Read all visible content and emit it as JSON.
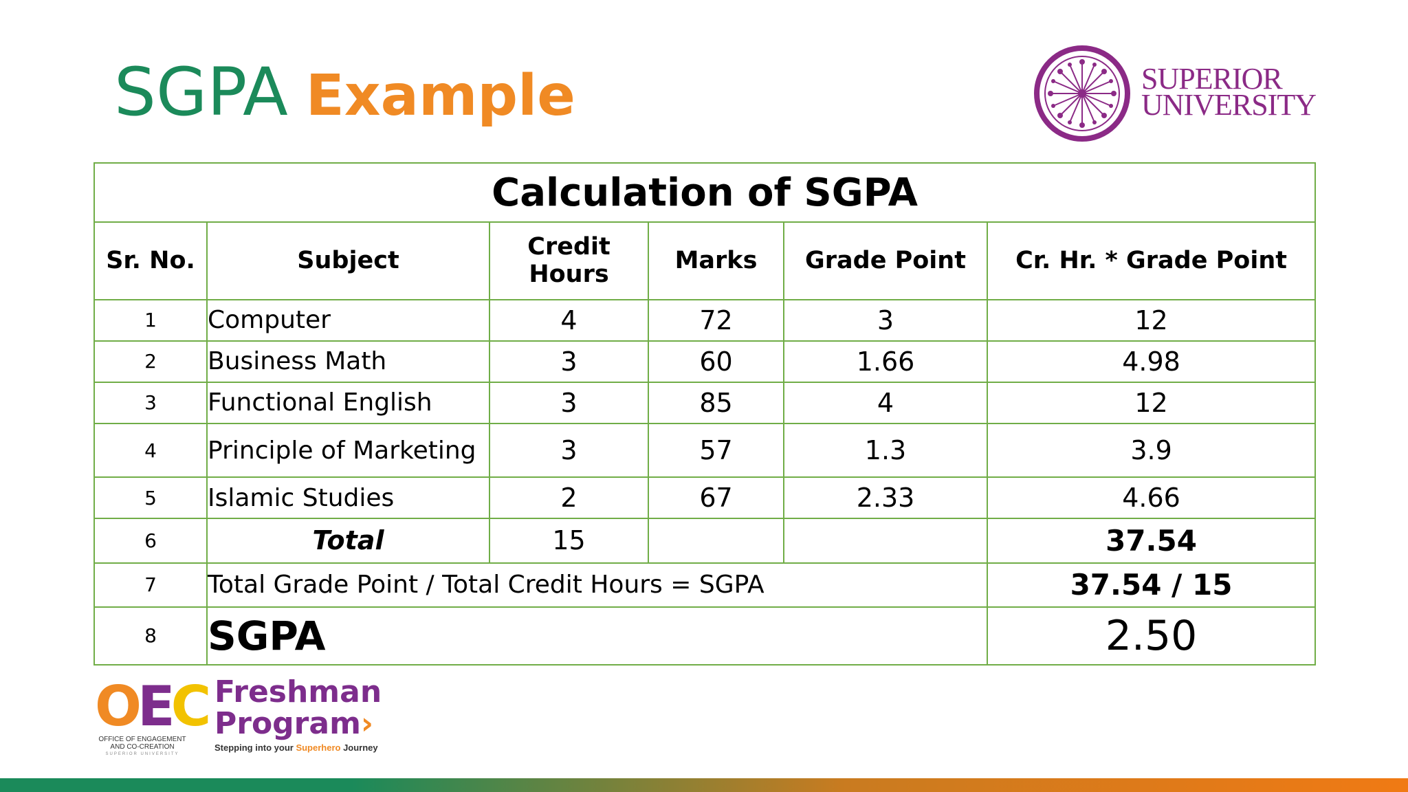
{
  "title": {
    "part1": "SGPA",
    "part2": "Example"
  },
  "logo": {
    "line1": "SUPERIOR",
    "line2": "UNIVERSITY"
  },
  "table": {
    "caption": "Calculation of SGPA",
    "headers": [
      "Sr. No.",
      "Subject",
      "Credit Hours",
      "Marks",
      "Grade Point",
      "Cr. Hr. * Grade Point"
    ],
    "rows": [
      {
        "sr": "1",
        "subject": "Computer",
        "credit": "4",
        "marks": "72",
        "gp": "3",
        "product": "12"
      },
      {
        "sr": "2",
        "subject": "Business Math",
        "credit": "3",
        "marks": "60",
        "gp": "1.66",
        "product": "4.98"
      },
      {
        "sr": "3",
        "subject": "Functional English",
        "credit": "3",
        "marks": "85",
        "gp": "4",
        "product": "12"
      },
      {
        "sr": "4",
        "subject": "Principle of Marketing",
        "credit": "3",
        "marks": "57",
        "gp": "1.3",
        "product": "3.9"
      },
      {
        "sr": "5",
        "subject": "Islamic Studies",
        "credit": "2",
        "marks": "67",
        "gp": "2.33",
        "product": "4.66"
      }
    ],
    "total_row": {
      "sr": "6",
      "label": "Total",
      "credit": "15",
      "product": "37.54"
    },
    "formula_row": {
      "sr": "7",
      "label": "Total Grade Point / Total Credit Hours = SGPA",
      "value": "37.54 / 15"
    },
    "sgpa_row": {
      "sr": "8",
      "label": "SGPA",
      "value": "2.50"
    }
  },
  "footer": {
    "oec": {
      "letters": [
        "O",
        "E",
        "C"
      ],
      "letter_colors": [
        "#f08a24",
        "#7d2d8c",
        "#f2c200"
      ],
      "sub1": "OFFICE OF ENGAGEMENT",
      "sub2": "AND CO-CREATION",
      "sub3": "SUPERIOR UNIVERSITY"
    },
    "freshman": {
      "line1": "Freshman",
      "line2": "Program",
      "tag_prefix": "Stepping into your ",
      "tag_highlight": "Superhero",
      "tag_suffix": " Journey"
    }
  },
  "colors": {
    "green": "#1b8a5a",
    "orange": "#f08a24",
    "purple": "#7d2d8c",
    "table_border": "#70ad47"
  }
}
